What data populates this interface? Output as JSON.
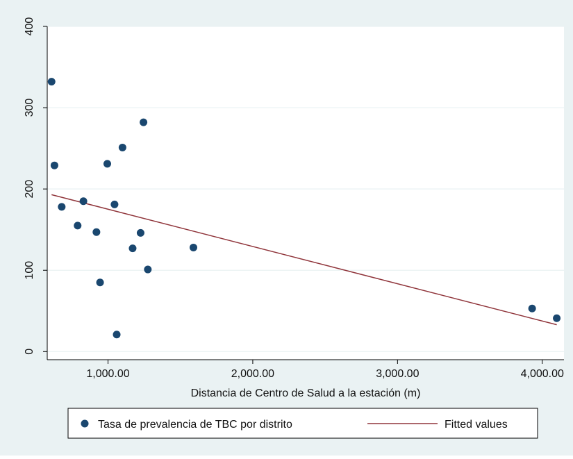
{
  "chart_data": {
    "type": "scatter",
    "title": "",
    "xlabel": "Distancia de Centro de Salud a la estación (m)",
    "ylabel": "",
    "xlim": [
      580,
      4150
    ],
    "ylim": [
      -10,
      400
    ],
    "x_ticks": [
      {
        "value": 1000,
        "label": "1,000.00"
      },
      {
        "value": 2000,
        "label": "2,000.00"
      },
      {
        "value": 3000,
        "label": "3,000.00"
      },
      {
        "value": 4000,
        "label": "4,000.00"
      }
    ],
    "y_ticks": [
      {
        "value": 0,
        "label": "0"
      },
      {
        "value": 100,
        "label": "100"
      },
      {
        "value": 200,
        "label": "200"
      },
      {
        "value": 300,
        "label": "300"
      },
      {
        "value": 400,
        "label": "400"
      }
    ],
    "grid": true,
    "legend_position": "bottom",
    "series": [
      {
        "name": "Tasa de prevalencia de TBC por distrito",
        "kind": "scatter",
        "color": "#1a476f",
        "points": [
          {
            "x": 610,
            "y": 332
          },
          {
            "x": 630,
            "y": 229
          },
          {
            "x": 680,
            "y": 178
          },
          {
            "x": 790,
            "y": 155
          },
          {
            "x": 830,
            "y": 185
          },
          {
            "x": 920,
            "y": 147
          },
          {
            "x": 945,
            "y": 85
          },
          {
            "x": 995,
            "y": 231
          },
          {
            "x": 1045,
            "y": 181
          },
          {
            "x": 1060,
            "y": 21
          },
          {
            "x": 1100,
            "y": 251
          },
          {
            "x": 1170,
            "y": 127
          },
          {
            "x": 1225,
            "y": 146
          },
          {
            "x": 1245,
            "y": 282
          },
          {
            "x": 1275,
            "y": 101
          },
          {
            "x": 1590,
            "y": 128
          },
          {
            "x": 3930,
            "y": 53
          },
          {
            "x": 4100,
            "y": 41
          }
        ]
      },
      {
        "name": "Fitted values",
        "kind": "line",
        "color": "#90353b",
        "points": [
          {
            "x": 610,
            "y": 193
          },
          {
            "x": 4100,
            "y": 33
          }
        ]
      }
    ]
  },
  "colors": {
    "outer_background": "#eaf2f3",
    "plot_background": "#ffffff",
    "gridline": "#eaf2f3",
    "axis": "#000000",
    "marker": "#1a476f",
    "fit_line": "#90353b"
  }
}
